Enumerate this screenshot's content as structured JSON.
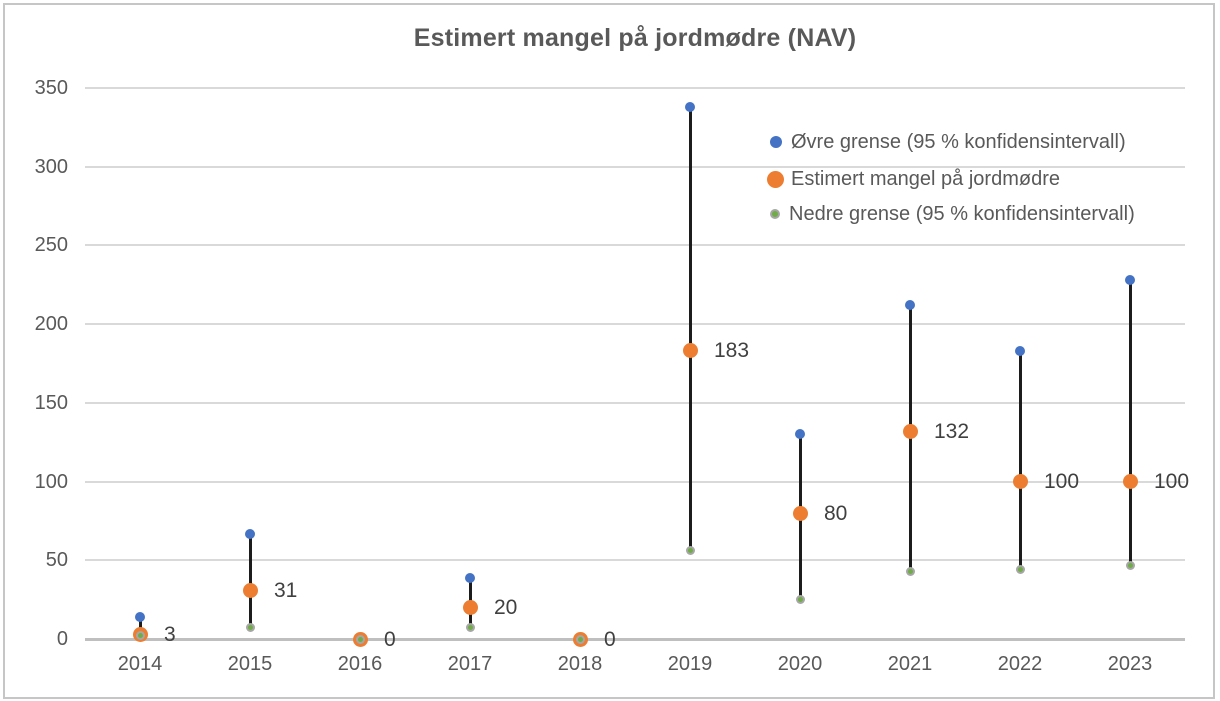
{
  "chart_data": {
    "type": "scatter",
    "title": "Estimert mangel på jordmødre (NAV)",
    "categories": [
      "2014",
      "2015",
      "2016",
      "2017",
      "2018",
      "2019",
      "2020",
      "2021",
      "2022",
      "2023"
    ],
    "series": [
      {
        "name": "Øvre grense (95 % konfidensintervall)",
        "role": "upper",
        "color": "#4472c4",
        "values": [
          14,
          67,
          0,
          39,
          0,
          338,
          130,
          212,
          183,
          228
        ]
      },
      {
        "name": "Estimert mangel på jordmødre",
        "role": "estimate",
        "color": "#ed7d31",
        "values": [
          3,
          31,
          0,
          20,
          0,
          183,
          80,
          132,
          100,
          100
        ],
        "data_labels": [
          "3",
          "31",
          "0",
          "20",
          "0",
          "183",
          "80",
          "132",
          "100",
          "100"
        ]
      },
      {
        "name": "Nedre grense (95 % konfidensintervall)",
        "role": "lower",
        "color": "#70ad47",
        "marker_border": "#a6a6a6",
        "values": [
          2,
          7,
          0,
          7,
          0,
          56,
          25,
          43,
          44,
          47
        ]
      }
    ],
    "xlabel": "",
    "ylabel": "",
    "ylim": [
      0,
      350
    ],
    "yticks": [
      0,
      50,
      100,
      150,
      200,
      250,
      300,
      350
    ],
    "grid": true,
    "legend_position": "inside-top-right",
    "error_bar_color": "#1c1c1c",
    "colors": {
      "text": "#595959",
      "data_label": "#404040",
      "gridline": "#d9d9d9",
      "axis_line": "#bfbfbf",
      "frame_border": "#c6c6c6"
    }
  }
}
